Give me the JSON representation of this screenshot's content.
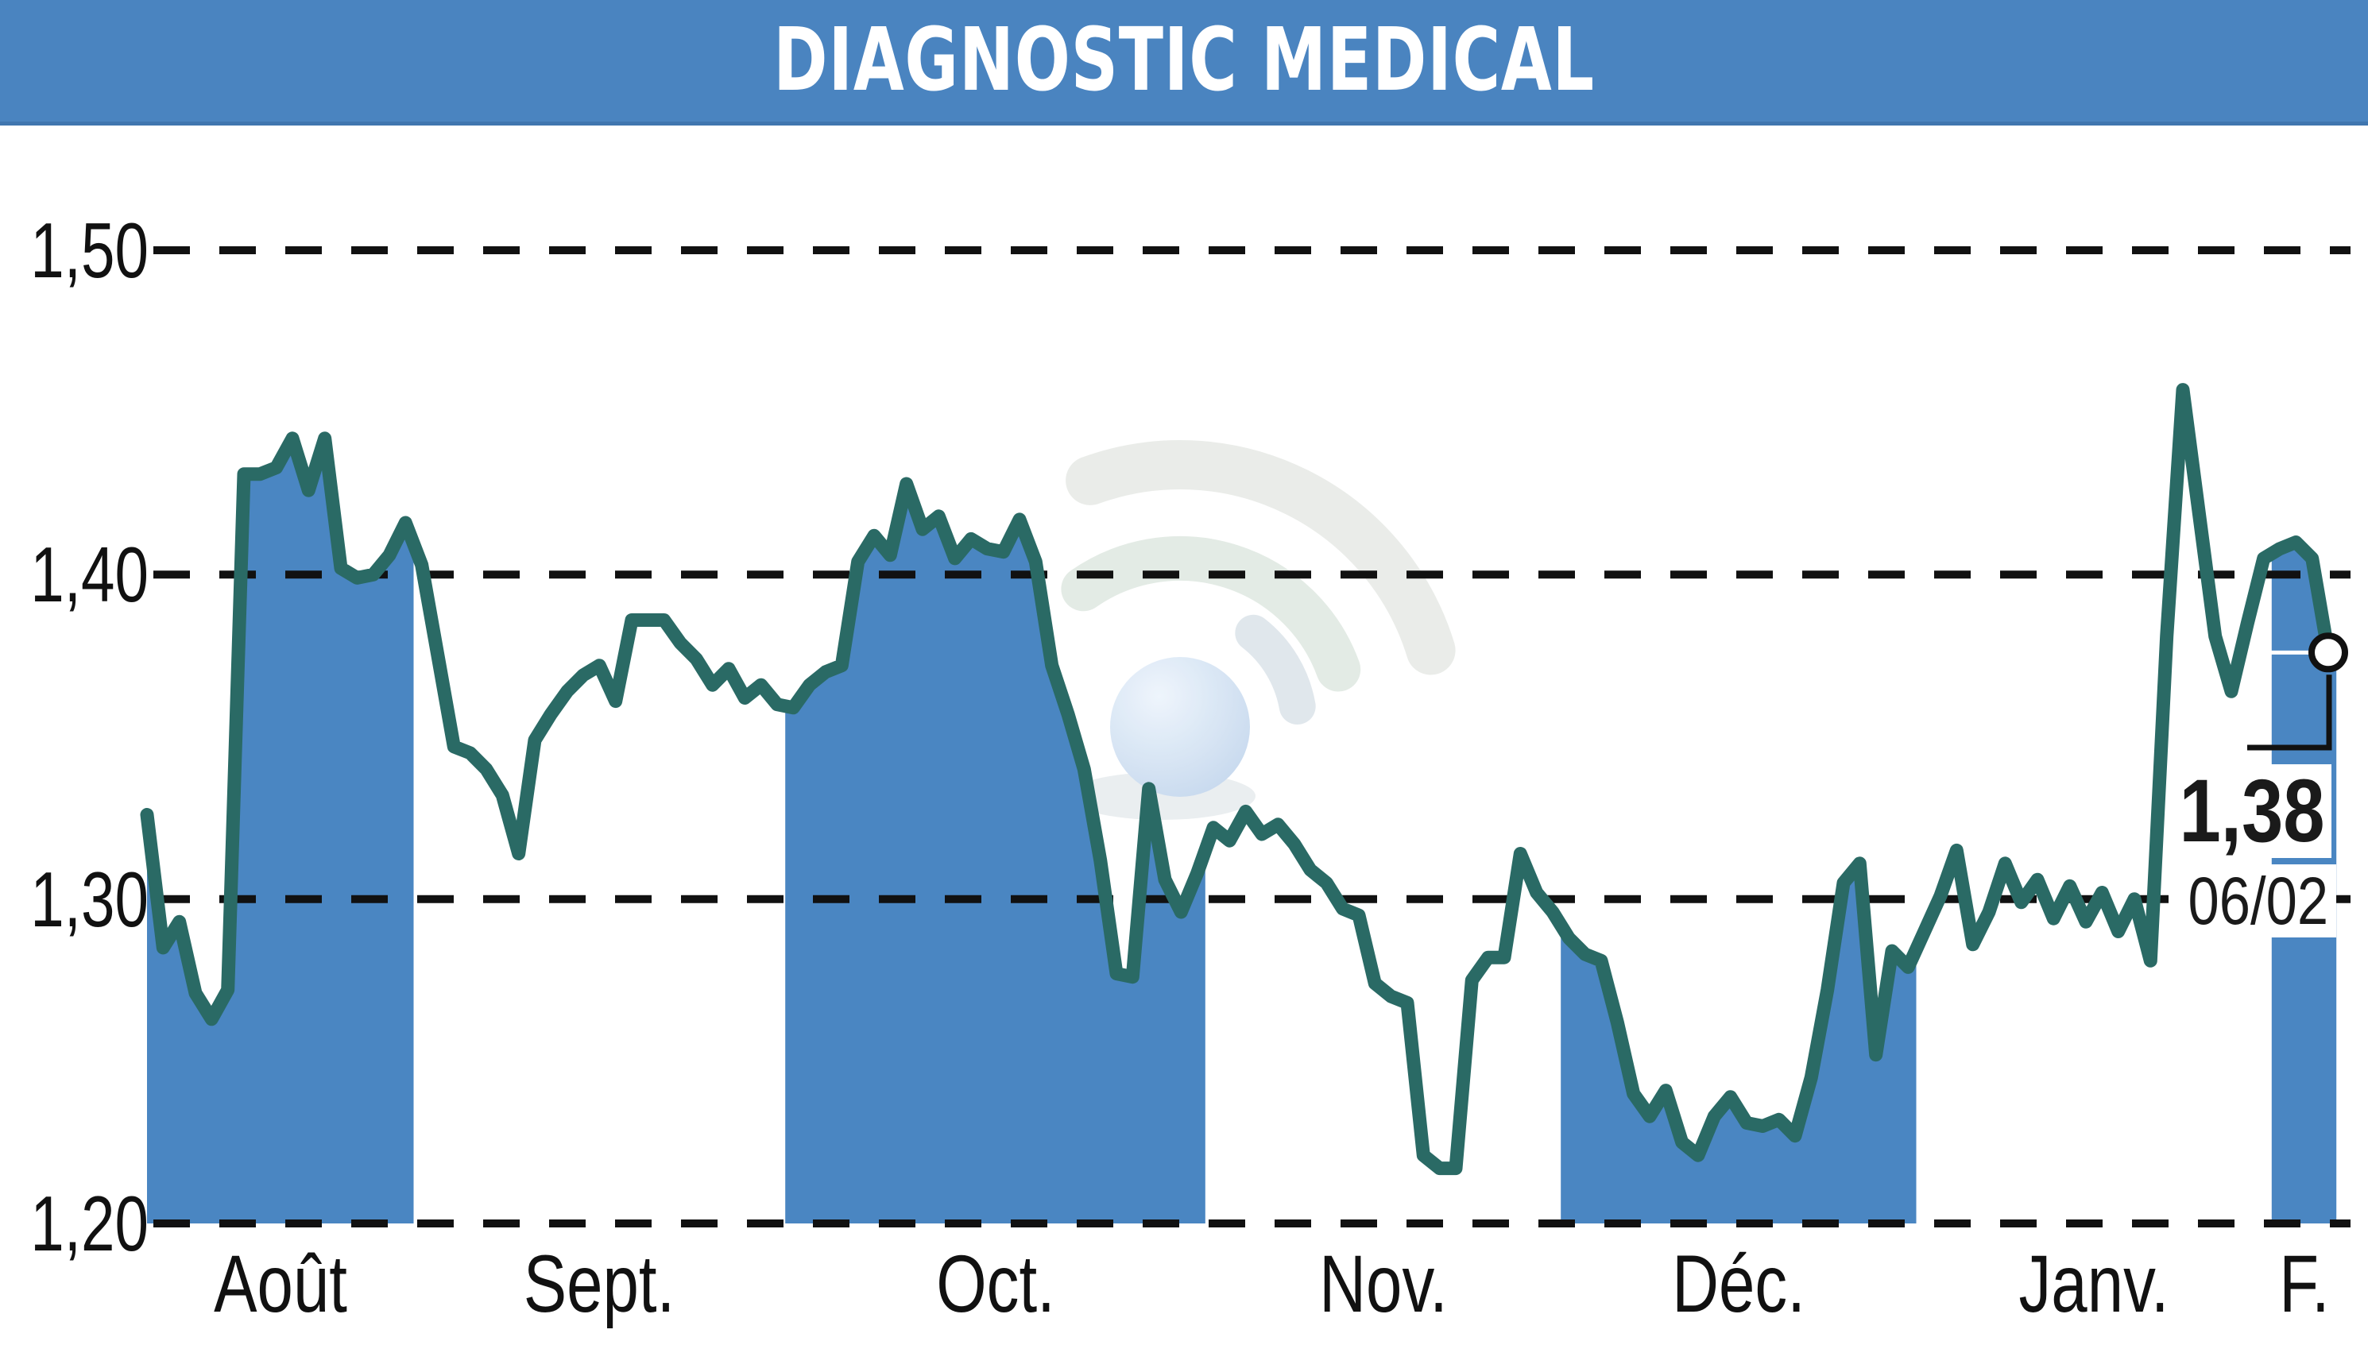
{
  "title": "DIAGNOSTIC MEDICAL",
  "header": {
    "background": "#4a84c0",
    "text_color": "#ffffff"
  },
  "chart_data": {
    "type": "area",
    "title": "DIAGNOSTIC MEDICAL",
    "ylabel": "",
    "xlabel": "",
    "ylim": [
      1.2,
      1.5
    ],
    "yticks": [
      "1,50",
      "1,40",
      "1,30",
      "1,20"
    ],
    "ytick_values": [
      1.5,
      1.4,
      1.3,
      1.2
    ],
    "grid": "dashed-horizontal",
    "legend": "none",
    "line_color": "#2a6a65",
    "fill_color": "#4a86c2",
    "tick_color": "#111111",
    "months": [
      {
        "label": "Août",
        "filled": true,
        "values": [
          1.326,
          1.285,
          1.293,
          1.271,
          1.263,
          1.272,
          1.431,
          1.431,
          1.433,
          1.442,
          1.426,
          1.442,
          1.402,
          1.399,
          1.4,
          1.406,
          1.416
        ]
      },
      {
        "label": "Sept.",
        "filled": false,
        "values": [
          1.403,
          1.375,
          1.347,
          1.345,
          1.34,
          1.332,
          1.314,
          1.349,
          1.357,
          1.364,
          1.369,
          1.372,
          1.361,
          1.386,
          1.386,
          1.386,
          1.379,
          1.374,
          1.366,
          1.371,
          1.362,
          1.366,
          1.36
        ]
      },
      {
        "label": "Oct.",
        "filled": true,
        "values": [
          1.359,
          1.366,
          1.37,
          1.372,
          1.404,
          1.412,
          1.406,
          1.428,
          1.414,
          1.418,
          1.405,
          1.411,
          1.408,
          1.407,
          1.417,
          1.404,
          1.372,
          1.357,
          1.34,
          1.312,
          1.277,
          1.276,
          1.334,
          1.306,
          1.296,
          1.308
        ]
      },
      {
        "label": "Nov.",
        "filled": false,
        "values": [
          1.322,
          1.318,
          1.327,
          1.32,
          1.323,
          1.317,
          1.309,
          1.305,
          1.297,
          1.295,
          1.274,
          1.27,
          1.268,
          1.221,
          1.217,
          1.217,
          1.275,
          1.282,
          1.282,
          1.314,
          1.302,
          1.296
        ]
      },
      {
        "label": "Déc.",
        "filled": true,
        "values": [
          1.288,
          1.283,
          1.281,
          1.262,
          1.24,
          1.233,
          1.241,
          1.225,
          1.221,
          1.233,
          1.239,
          1.231,
          1.23,
          1.232,
          1.227,
          1.245,
          1.272,
          1.305,
          1.311,
          1.252,
          1.284,
          1.279
        ]
      },
      {
        "label": "Janv.",
        "filled": false,
        "values": [
          1.29,
          1.301,
          1.315,
          1.286,
          1.296,
          1.311,
          1.299,
          1.306,
          1.294,
          1.304,
          1.293,
          1.302,
          1.29,
          1.3,
          1.281,
          1.381,
          1.457,
          1.419,
          1.381,
          1.364,
          1.385,
          1.405
        ]
      },
      {
        "label": "F.",
        "filled": true,
        "values": [
          1.408,
          1.41,
          1.405,
          1.376
        ]
      }
    ],
    "last": {
      "price": "1,38",
      "date": "06/02",
      "value": 1.376
    }
  },
  "watermark": {
    "description": "wifi-arcs-and-sphere-logo",
    "sphere_color": "#c5d8ee",
    "sphere_highlight": "#eef5fc",
    "arc_outer_color": "#e9ece8",
    "arc_inner_color": "#e2eae4",
    "arc_small_color": "#dfe6ec",
    "swoosh_color": "#e3e8eb"
  }
}
